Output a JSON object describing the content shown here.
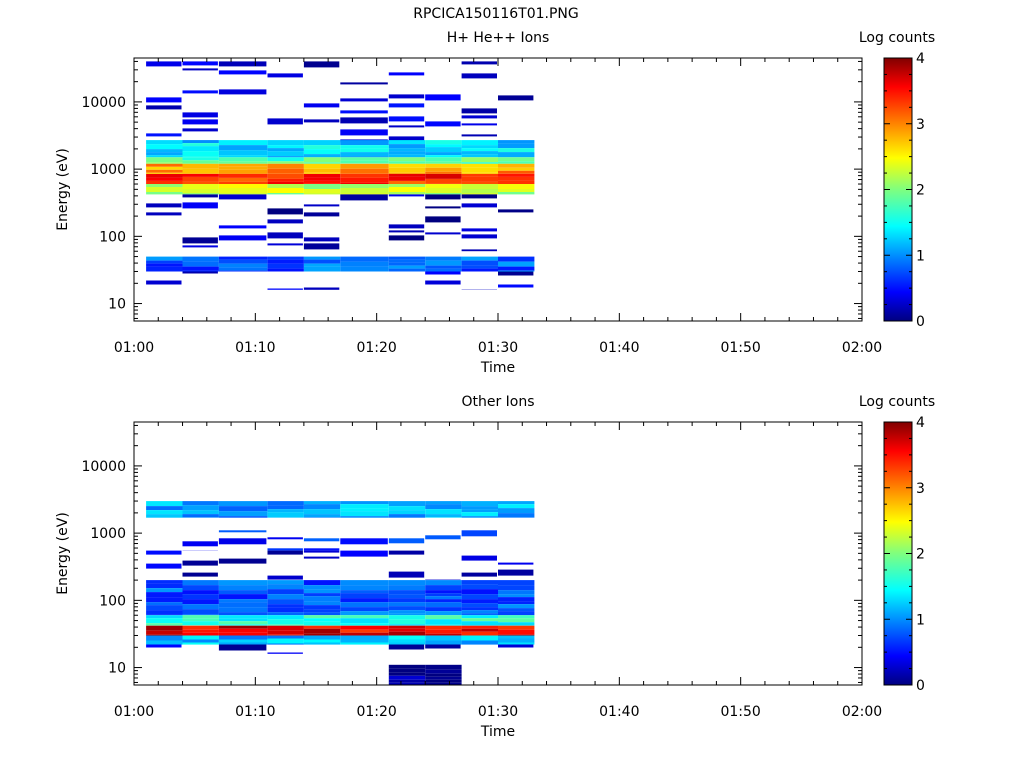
{
  "figure_title": "RPCICA150116T01.PNG",
  "chart_data": [
    {
      "type": "heatmap",
      "title": "H+ He++ Ions",
      "xlabel": "Time",
      "ylabel": "Energy (eV)",
      "x_ticks": [
        "01:00",
        "01:10",
        "01:20",
        "01:30",
        "01:40",
        "01:50",
        "02:00"
      ],
      "y_ticks": [
        "10",
        "100",
        "1000",
        "10000"
      ],
      "xlim": [
        "01:00",
        "02:00"
      ],
      "ylim": [
        5.5,
        45000
      ],
      "y_scale": "log",
      "colorbar": {
        "label": "Log counts",
        "range": [
          0,
          4
        ],
        "ticks": [
          "0",
          "1",
          "2",
          "3",
          "4"
        ]
      },
      "time_bins": [
        "01:01",
        "01:04",
        "01:07",
        "01:11",
        "01:14",
        "01:17",
        "01:21",
        "01:24",
        "01:27",
        "01:30",
        "01:33"
      ],
      "bands": [
        {
          "emin": 2500,
          "emax": 40000,
          "value": 0.3,
          "coverage": "sparse"
        },
        {
          "emin": 1500,
          "emax": 2700,
          "value": 1.3,
          "coverage": "full"
        },
        {
          "emin": 1200,
          "emax": 1500,
          "value": 1.8,
          "coverage": "full"
        },
        {
          "emin": 850,
          "emax": 1200,
          "value": 2.9,
          "coverage": "full"
        },
        {
          "emin": 600,
          "emax": 850,
          "value": 3.4,
          "coverage": "full"
        },
        {
          "emin": 420,
          "emax": 600,
          "value": 2.2,
          "coverage": "full"
        },
        {
          "emin": 60,
          "emax": 420,
          "value": 0.2,
          "coverage": "sparse"
        },
        {
          "emin": 30,
          "emax": 50,
          "value": 0.8,
          "coverage": "full"
        },
        {
          "emin": 16,
          "emax": 30,
          "value": 0.3,
          "coverage": "sparse"
        }
      ]
    },
    {
      "type": "heatmap",
      "title": "Other Ions",
      "xlabel": "Time",
      "ylabel": "Energy (eV)",
      "x_ticks": [
        "01:00",
        "01:10",
        "01:20",
        "01:30",
        "01:40",
        "01:50",
        "02:00"
      ],
      "y_ticks": [
        "10",
        "100",
        "1000",
        "10000"
      ],
      "xlim": [
        "01:00",
        "02:00"
      ],
      "ylim": [
        5.5,
        45000
      ],
      "y_scale": "log",
      "colorbar": {
        "label": "Log counts",
        "range": [
          0,
          4
        ],
        "ticks": [
          "0",
          "1",
          "2",
          "3",
          "4"
        ]
      },
      "time_bins": [
        "01:01",
        "01:04",
        "01:07",
        "01:11",
        "01:14",
        "01:17",
        "01:21",
        "01:24",
        "01:27",
        "01:30",
        "01:33"
      ],
      "bands": [
        {
          "emin": 1700,
          "emax": 3000,
          "value": 1.1,
          "coverage": "full"
        },
        {
          "emin": 550,
          "emax": 1100,
          "value": 0.6,
          "coverage": "sparse"
        },
        {
          "emin": 200,
          "emax": 550,
          "value": 0.3,
          "coverage": "sparse"
        },
        {
          "emin": 60,
          "emax": 200,
          "value": 0.8,
          "coverage": "full"
        },
        {
          "emin": 42,
          "emax": 60,
          "value": 1.6,
          "coverage": "full"
        },
        {
          "emin": 30,
          "emax": 42,
          "value": 3.6,
          "coverage": "full"
        },
        {
          "emin": 22,
          "emax": 30,
          "value": 1.2,
          "coverage": "full"
        },
        {
          "emin": 16,
          "emax": 22,
          "value": 0.3,
          "coverage": "sparse"
        },
        {
          "emin": 5.5,
          "emax": 11,
          "value": 0.05,
          "coverage": "window",
          "tmin": "01:20",
          "tmax": "01:27"
        }
      ]
    }
  ]
}
